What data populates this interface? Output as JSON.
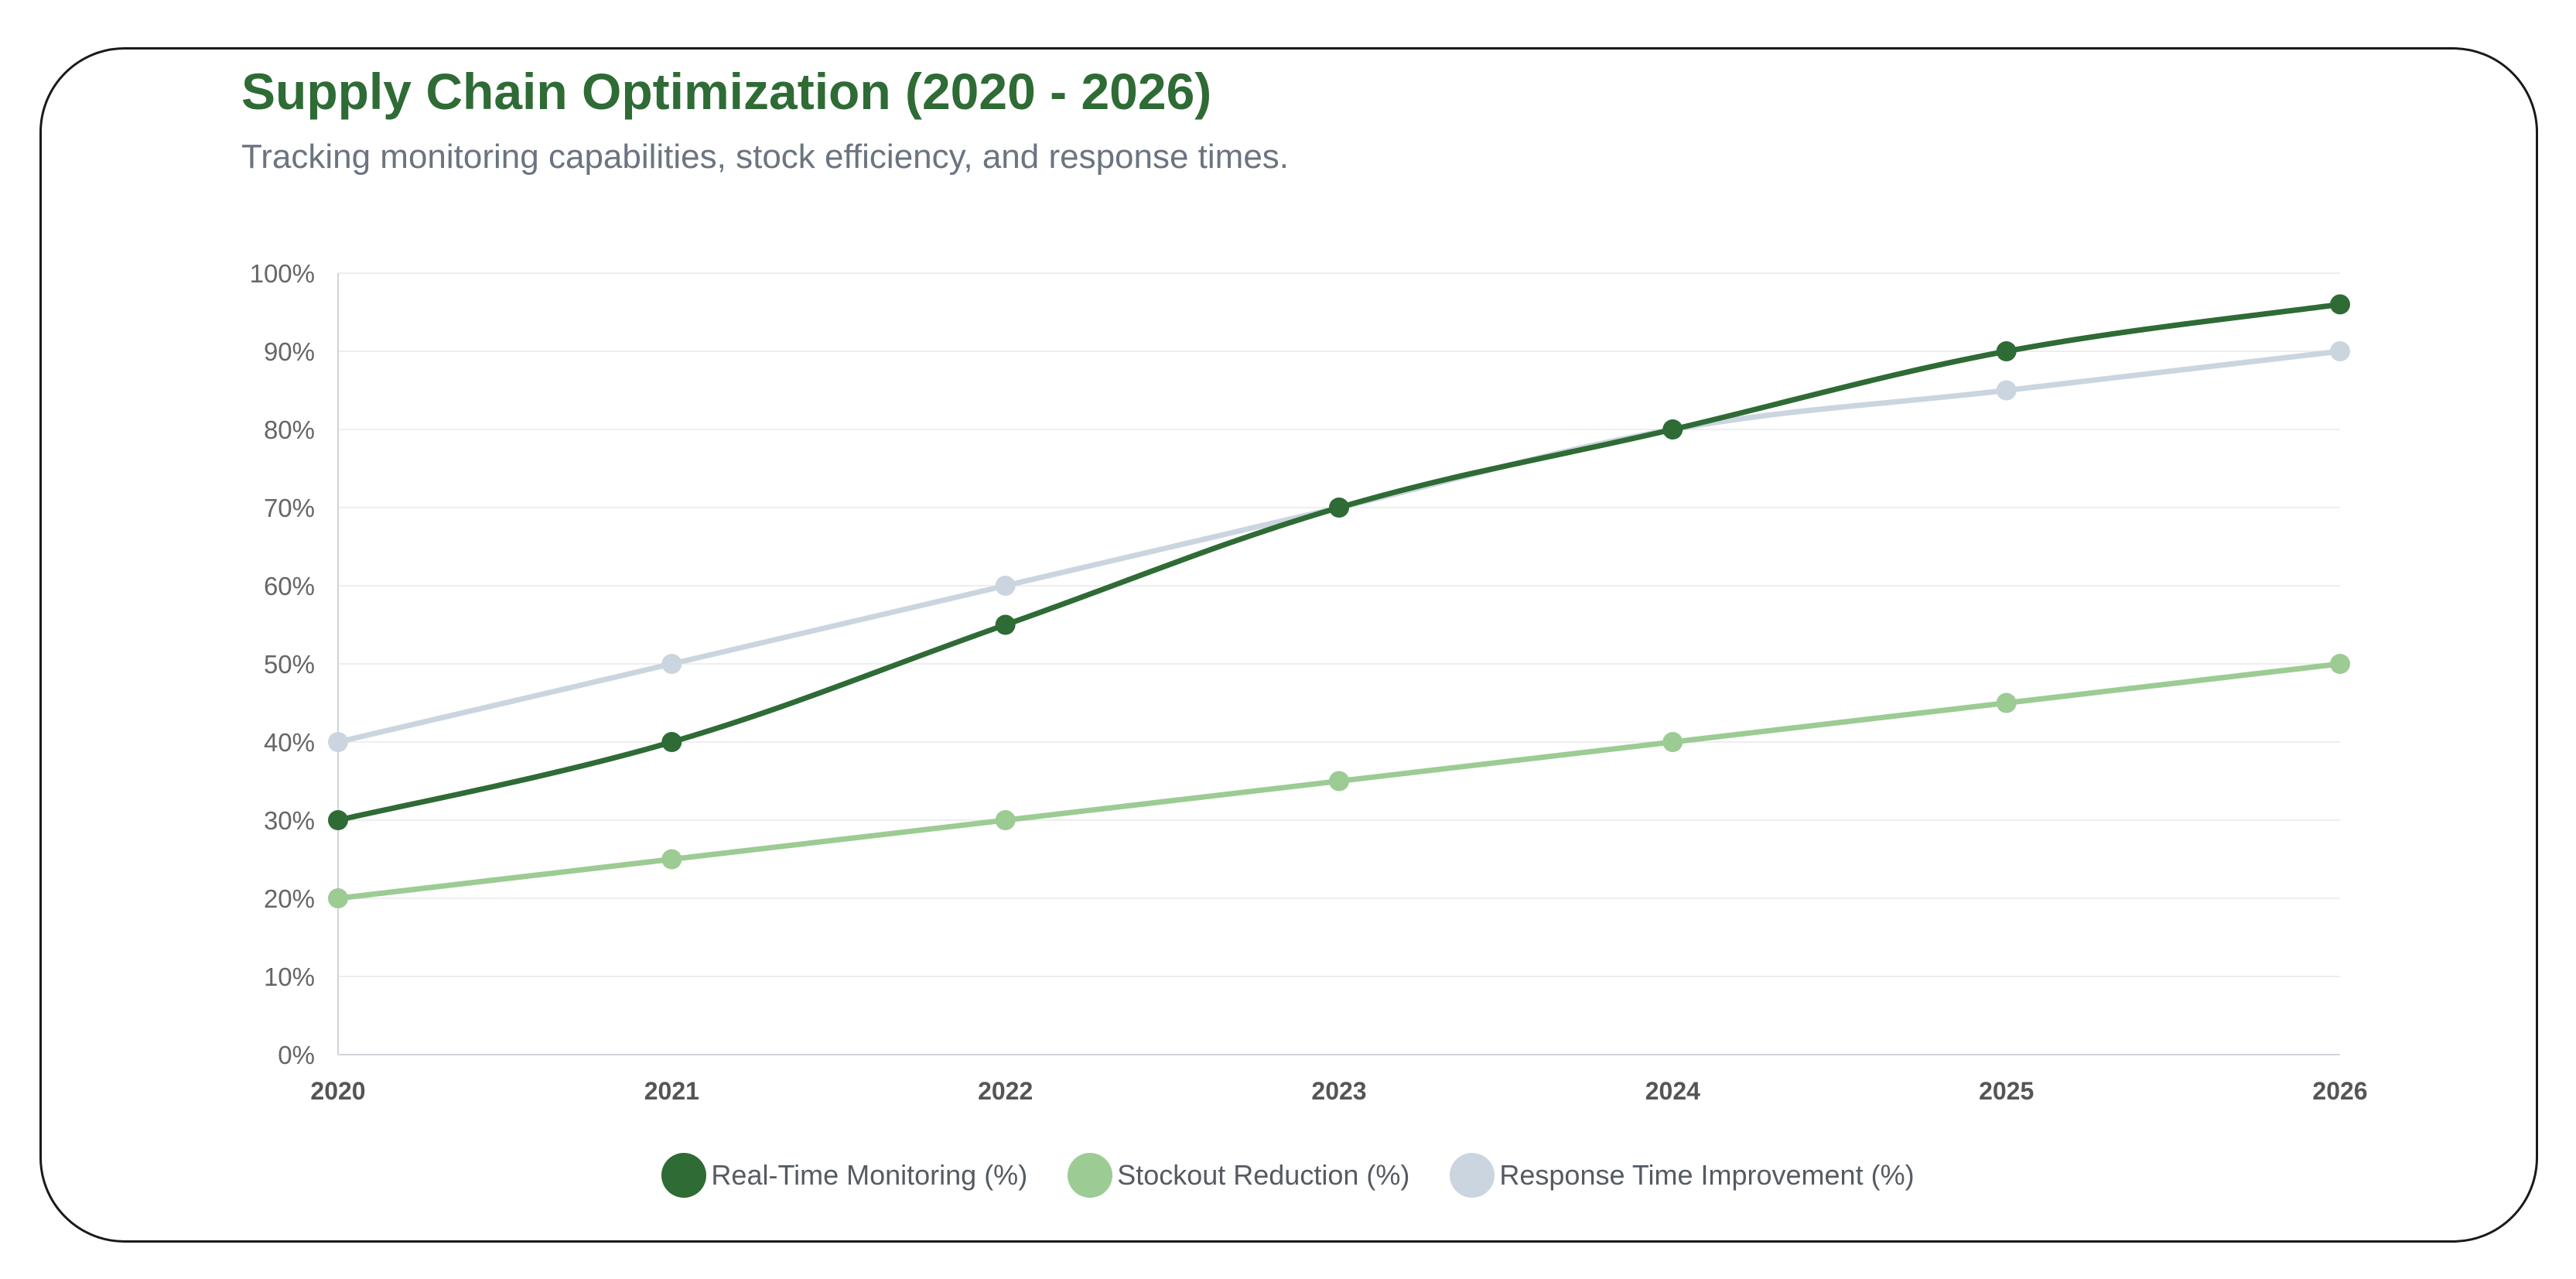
{
  "header": {
    "title": "Supply Chain Optimization (2020 - 2026)",
    "subtitle": "Tracking monitoring capabilities, stock efficiency, and response times."
  },
  "colors": {
    "title": "#2e6b35",
    "subtitle": "#6b7480",
    "grid": "#eeeeee",
    "axis": "#d0d4d9",
    "tick_text": "#666666",
    "xtick_text": "#555555"
  },
  "chart_data": {
    "type": "line",
    "title": "Supply Chain Optimization (2020 - 2026)",
    "subtitle": "Tracking monitoring capabilities, stock efficiency, and response times.",
    "xlabel": "",
    "ylabel": "",
    "categories": [
      "2020",
      "2021",
      "2022",
      "2023",
      "2024",
      "2025",
      "2026"
    ],
    "ylim": [
      0,
      100
    ],
    "y_ticks": [
      0,
      10,
      20,
      30,
      40,
      50,
      60,
      70,
      80,
      90,
      100
    ],
    "y_tick_labels": [
      "0%",
      "10%",
      "20%",
      "30%",
      "40%",
      "50%",
      "60%",
      "70%",
      "80%",
      "90%",
      "100%"
    ],
    "grid": true,
    "legend_position": "bottom-center",
    "series": [
      {
        "name": "Response Time Improvement (%)",
        "color": "#cbd5e0",
        "values": [
          40,
          50,
          60,
          70,
          80,
          85,
          90
        ]
      },
      {
        "name": "Stockout Reduction (%)",
        "color": "#9ccb94",
        "values": [
          20,
          25,
          30,
          35,
          40,
          45,
          50
        ]
      },
      {
        "name": "Real-Time Monitoring (%)",
        "color": "#2e6b35",
        "values": [
          30,
          40,
          55,
          70,
          80,
          90,
          96
        ]
      }
    ],
    "legend_order": [
      "Real-Time Monitoring (%)",
      "Stockout Reduction (%)",
      "Response Time Improvement (%)"
    ]
  }
}
